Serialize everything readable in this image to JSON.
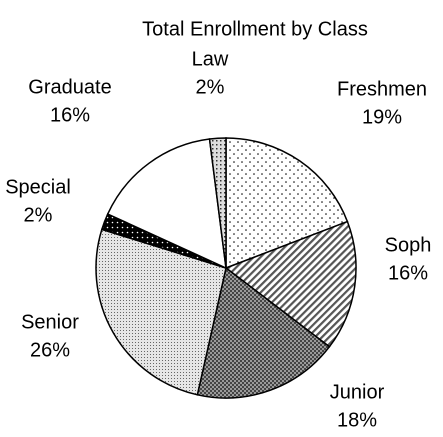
{
  "chart_data": {
    "type": "pie",
    "title": "Total Enrollment by Class",
    "categories": [
      "Freshmen",
      "Soph",
      "Junior",
      "Senior",
      "Special",
      "Graduate",
      "Law"
    ],
    "values": [
      19,
      16,
      18,
      26,
      2,
      16,
      2
    ],
    "value_labels": [
      "19%",
      "16%",
      "18%",
      "26%",
      "2%",
      "16%",
      "2%"
    ]
  }
}
